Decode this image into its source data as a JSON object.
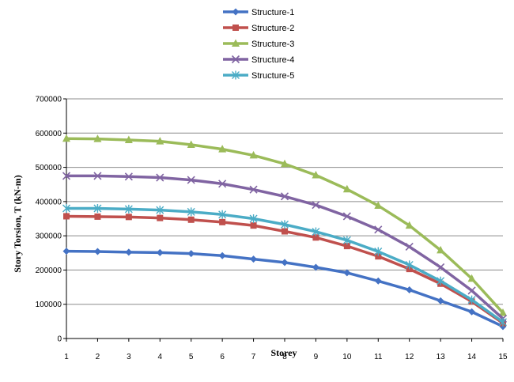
{
  "chart_data": {
    "type": "line",
    "xlabel": "Storey",
    "ylabel": "Story Torsion, T (kN-m)",
    "x": [
      1,
      2,
      3,
      4,
      5,
      6,
      7,
      8,
      9,
      10,
      11,
      12,
      13,
      14,
      15
    ],
    "xlim": [
      1,
      15
    ],
    "ylim": [
      0,
      700000
    ],
    "yticks": [
      0,
      100000,
      200000,
      300000,
      400000,
      500000,
      600000,
      700000
    ],
    "ytick_labels": [
      "0",
      "100000",
      "200000",
      "300000",
      "400000",
      "500000",
      "600000",
      "700000"
    ],
    "xtick_labels": [
      "1",
      "2",
      "3",
      "4",
      "5",
      "6",
      "7",
      "8",
      "9",
      "10",
      "11",
      "12",
      "13",
      "14",
      "15"
    ],
    "grid": "horizontal",
    "legend_position": "top-center",
    "series": [
      {
        "name": "Structure-1",
        "color": "#4472C4",
        "marker": "diamond",
        "values": [
          255000,
          254000,
          252000,
          251000,
          248000,
          242000,
          232000,
          222000,
          208000,
          192000,
          168000,
          142000,
          110000,
          78000,
          35000
        ]
      },
      {
        "name": "Structure-2",
        "color": "#C0504D",
        "marker": "square",
        "values": [
          357000,
          356000,
          355000,
          352000,
          347000,
          340000,
          330000,
          313000,
          295000,
          270000,
          240000,
          203000,
          160000,
          108000,
          45000
        ]
      },
      {
        "name": "Structure-3",
        "color": "#9BBB59",
        "marker": "triangle",
        "values": [
          584000,
          583000,
          580000,
          576000,
          566000,
          553000,
          535000,
          510000,
          477000,
          436000,
          388000,
          330000,
          258000,
          175000,
          75000
        ]
      },
      {
        "name": "Structure-4",
        "color": "#8064A2",
        "marker": "x",
        "values": [
          475000,
          475000,
          473000,
          470000,
          463000,
          452000,
          435000,
          415000,
          390000,
          357000,
          318000,
          268000,
          208000,
          140000,
          58000
        ]
      },
      {
        "name": "Structure-5",
        "color": "#4BACC6",
        "marker": "star",
        "values": [
          380000,
          380000,
          378000,
          375000,
          370000,
          362000,
          350000,
          333000,
          312000,
          287000,
          254000,
          215000,
          168000,
          113000,
          48000
        ]
      }
    ]
  }
}
